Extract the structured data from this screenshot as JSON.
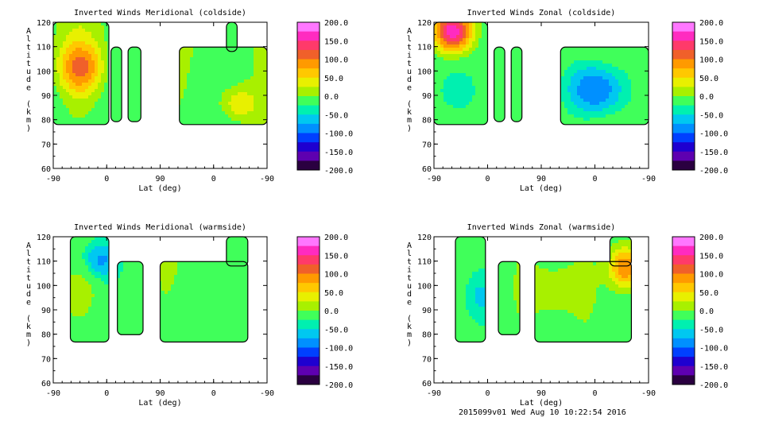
{
  "footer": "2015099v01 Wed Aug 10 10:22:54 2016",
  "colorbar": {
    "labels": [
      "200.0",
      "150.0",
      "100.0",
      "50.0",
      "0.0",
      "-50.0",
      "-100.0",
      "-150.0",
      "-200.0"
    ],
    "stops": [
      "#ff77ff",
      "#ff2bc0",
      "#ff3a6a",
      "#f0602a",
      "#ff9a00",
      "#ffc800",
      "#e8f000",
      "#a8f000",
      "#40ff5a",
      "#00f0b0",
      "#00c8f0",
      "#0090ff",
      "#0040ff",
      "#1e00d0",
      "#5e00b0",
      "#2a0040"
    ]
  },
  "chart_data": [
    {
      "type": "heatmap",
      "title": "Inverted Winds Meridional (coldside)",
      "xlabel": "Lat (deg)",
      "ylabel": "Altitude (km)",
      "x_ticks": [
        "-90",
        "0",
        "90",
        "0",
        "-90"
      ],
      "y_ticks": [
        "120",
        "110",
        "100",
        "90",
        "80",
        "70",
        "60"
      ],
      "ylim": [
        60,
        120
      ],
      "clim": [
        -200,
        200
      ]
    },
    {
      "type": "heatmap",
      "title": "Inverted Winds Zonal (coldside)",
      "xlabel": "Lat (deg)",
      "ylabel": "Altitude (km)",
      "x_ticks": [
        "-90",
        "0",
        "90",
        "0",
        "-90"
      ],
      "y_ticks": [
        "120",
        "110",
        "100",
        "90",
        "80",
        "70",
        "60"
      ],
      "ylim": [
        60,
        120
      ],
      "clim": [
        -200,
        200
      ]
    },
    {
      "type": "heatmap",
      "title": "Inverted Winds Meridional (warmside)",
      "xlabel": "Lat (deg)",
      "ylabel": "Altitude (km)",
      "x_ticks": [
        "-90",
        "0",
        "90",
        "0",
        "-90"
      ],
      "y_ticks": [
        "120",
        "110",
        "100",
        "90",
        "80",
        "70",
        "60"
      ],
      "ylim": [
        60,
        120
      ],
      "clim": [
        -200,
        200
      ]
    },
    {
      "type": "heatmap",
      "title": "Inverted Winds Zonal (warmside)",
      "xlabel": "Lat (deg)",
      "ylabel": "Altitude (km)",
      "x_ticks": [
        "-90",
        "0",
        "90",
        "0",
        "-90"
      ],
      "y_ticks": [
        "120",
        "110",
        "100",
        "90",
        "80",
        "70",
        "60"
      ],
      "ylim": [
        60,
        120
      ],
      "clim": [
        -200,
        200
      ]
    }
  ]
}
